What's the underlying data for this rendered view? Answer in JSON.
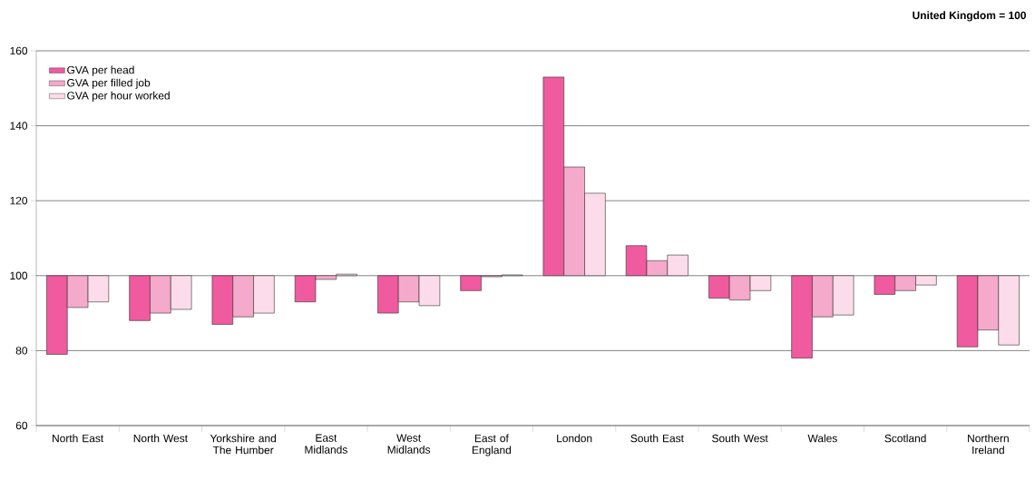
{
  "chart_data": {
    "type": "bar",
    "subtitle": "United Kingdom = 100",
    "categories": [
      "North East",
      "North West",
      "Yorkshire and The Humber",
      "East Midlands",
      "West Midlands",
      "East of England",
      "London",
      "South East",
      "South West",
      "Wales",
      "Scotland",
      "Northern Ireland"
    ],
    "series": [
      {
        "name": "GVA per head",
        "color": "#f05a9e",
        "base": [
          100,
          100,
          100,
          100,
          100,
          100,
          100,
          100,
          100,
          100,
          100,
          100
        ],
        "values": [
          -21,
          -12,
          -13,
          -7,
          -10,
          -4,
          53,
          8,
          -6,
          -22,
          -5,
          -19
        ]
      },
      {
        "name": "GVA per filled job",
        "color": "#f5a9cb",
        "base": [
          100,
          100,
          100,
          100,
          100,
          100,
          100,
          100,
          100,
          100,
          100,
          100
        ],
        "values": [
          -8.5,
          -10,
          -11,
          -1,
          -7,
          -0.3,
          29,
          4,
          -6.5,
          -11,
          -4,
          -14.5
        ]
      },
      {
        "name": "GVA per hour worked",
        "color": "#fcdcea",
        "base": [
          100,
          100,
          100,
          100,
          100,
          100,
          100,
          100,
          100,
          100,
          100,
          100
        ],
        "values": [
          -7,
          -9,
          -10,
          0.4,
          -8,
          0.2,
          22,
          5.5,
          -4,
          -10.5,
          -2.5,
          -18.5
        ]
      }
    ],
    "ylim": [
      60,
      160
    ],
    "yticks": [
      60,
      80,
      100,
      120,
      140,
      160
    ],
    "grid": "y",
    "legend": "top left"
  }
}
